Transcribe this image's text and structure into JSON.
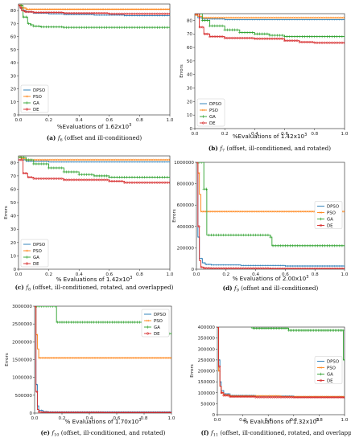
{
  "colors": {
    "DPSO": "#1f77b4",
    "PSO": "#ff7f0e",
    "GA": "#2ca02c",
    "DE": "#d62728"
  },
  "legend": [
    "DPSO",
    "PSO",
    "GA",
    "DE"
  ],
  "chart_data": [
    {
      "type": "line",
      "panel": "a",
      "xlabel": "%Evaluations of 1.62x10",
      "xlabel_sup": "3",
      "ylabel": "",
      "xlim": [
        0,
        1.0
      ],
      "ylim": [
        0,
        85
      ],
      "xticks": [
        0.0,
        0.2,
        0.4,
        0.6,
        0.8,
        1.0
      ],
      "xtick_labels": [
        "0.0",
        "0.2",
        "0.4",
        "0.6",
        "0.8",
        "1.0"
      ],
      "yticks": [
        0,
        10,
        20,
        30,
        40,
        50,
        60,
        70,
        80
      ],
      "ytick_labels": [
        "0",
        "10",
        "20",
        "30",
        "40",
        "50",
        "60",
        "70",
        "80"
      ],
      "legend_loc": "bottom-left",
      "series": [
        {
          "name": "DPSO",
          "x": [
            0,
            0.01,
            0.02,
            0.05,
            0.1,
            0.2,
            0.3,
            0.5,
            0.7,
            1.0
          ],
          "y": [
            84,
            82,
            80,
            79,
            78,
            77.5,
            77,
            76.5,
            76,
            76
          ]
        },
        {
          "name": "PSO",
          "x": [
            0,
            0.02,
            0.05,
            1.0
          ],
          "y": [
            84,
            82,
            81,
            81
          ]
        },
        {
          "name": "GA",
          "x": [
            0,
            0.03,
            0.06,
            0.08,
            0.1,
            0.15,
            0.3,
            1.0
          ],
          "y": [
            84,
            75,
            70,
            69,
            68,
            67.5,
            67,
            67
          ]
        },
        {
          "name": "DE",
          "x": [
            0,
            0.01,
            0.02,
            0.04,
            0.1,
            0.3,
            0.6,
            1.0
          ],
          "y": [
            84,
            82,
            80,
            79,
            78.5,
            78,
            77.5,
            77.5
          ]
        }
      ],
      "caption_letter": "(a)",
      "caption_fn": "f",
      "caption_sub": "6",
      "caption_text": " (offset and ill-conditioned)"
    },
    {
      "type": "line",
      "panel": "b",
      "xlabel": "%Evaluations of 1.42x10",
      "xlabel_sup": "3",
      "ylabel": "Errors",
      "xlim": [
        0,
        1.0
      ],
      "ylim": [
        0,
        85
      ],
      "xticks": [
        0.0,
        0.2,
        0.4,
        0.6,
        0.8,
        1.0
      ],
      "xtick_labels": [
        "0.0",
        "0.2",
        "0.4",
        "0.6",
        "0.8",
        "1.0"
      ],
      "yticks": [
        0,
        10,
        20,
        30,
        40,
        50,
        60,
        70,
        80
      ],
      "ytick_labels": [
        "0",
        "10",
        "20",
        "30",
        "40",
        "50",
        "60",
        "70",
        "80"
      ],
      "legend_loc": "bottom-left",
      "series": [
        {
          "name": "DPSO",
          "x": [
            0,
            0.02,
            0.05,
            0.2,
            0.5,
            1.0
          ],
          "y": [
            84,
            82,
            81,
            80.5,
            80.5,
            80.5
          ]
        },
        {
          "name": "PSO",
          "x": [
            0,
            0.02,
            0.05,
            1.0
          ],
          "y": [
            84,
            83,
            82,
            82
          ]
        },
        {
          "name": "GA",
          "x": [
            0,
            0.05,
            0.1,
            0.2,
            0.3,
            0.4,
            0.5,
            0.6,
            0.7,
            1.0
          ],
          "y": [
            85,
            80,
            76,
            73,
            71,
            70,
            69,
            68,
            68,
            68
          ]
        },
        {
          "name": "DE",
          "x": [
            0,
            0.03,
            0.06,
            0.1,
            0.2,
            0.4,
            0.6,
            0.7,
            0.8,
            1.0
          ],
          "y": [
            85,
            75,
            70,
            68,
            67,
            66.5,
            65,
            64,
            63.5,
            63.5
          ]
        }
      ],
      "caption_letter": "(b)",
      "caption_fn": "f",
      "caption_sub": "7",
      "caption_text": " (offset, ill-conditioned, and rotated)"
    },
    {
      "type": "line",
      "panel": "c",
      "xlabel": "% Evaluations of 1.42x10",
      "xlabel_sup": "3",
      "ylabel": "Errors",
      "xlim": [
        0,
        1.0
      ],
      "ylim": [
        0,
        85
      ],
      "xticks": [
        0.0,
        0.2,
        0.4,
        0.6,
        0.8,
        1.0
      ],
      "xtick_labels": [
        "0.0",
        "0.2",
        "0.4",
        "0.6",
        "0.8",
        "1.0"
      ],
      "yticks": [
        0,
        10,
        20,
        30,
        40,
        50,
        60,
        70,
        80
      ],
      "ytick_labels": [
        "0",
        "10",
        "20",
        "30",
        "40",
        "50",
        "60",
        "70",
        "80"
      ],
      "legend_loc": "bottom-left",
      "series": [
        {
          "name": "DPSO",
          "x": [
            0,
            0.02,
            0.05,
            0.2,
            0.5,
            1.0
          ],
          "y": [
            84,
            82,
            81,
            80.5,
            80.5,
            80.5
          ]
        },
        {
          "name": "PSO",
          "x": [
            0,
            0.02,
            0.05,
            1.0
          ],
          "y": [
            84,
            83,
            82,
            82
          ]
        },
        {
          "name": "GA",
          "x": [
            0,
            0.05,
            0.1,
            0.2,
            0.3,
            0.4,
            0.5,
            0.6,
            0.8,
            1.0
          ],
          "y": [
            84,
            82,
            79,
            76,
            73,
            71,
            70,
            69,
            69,
            69
          ]
        },
        {
          "name": "DE",
          "x": [
            0,
            0.03,
            0.06,
            0.1,
            0.3,
            0.5,
            0.6,
            0.7,
            1.0
          ],
          "y": [
            82,
            72,
            69,
            68,
            67,
            67,
            66,
            65,
            65
          ]
        }
      ],
      "caption_letter": "(c)",
      "caption_fn": "f",
      "caption_sub": "8",
      "caption_text": " (offset, ill-conditioned, rotated, and overlapped)"
    },
    {
      "type": "line",
      "panel": "d",
      "xlabel": "% Evaluations of 2.00x10",
      "xlabel_sup": "3",
      "ylabel": "Errors",
      "xlim": [
        0,
        1.0
      ],
      "ylim": [
        0,
        1000000
      ],
      "xticks": [
        0.0,
        0.2,
        0.4,
        0.6,
        0.8,
        1.0
      ],
      "xtick_labels": [
        "0.0",
        "0.2",
        "0.4",
        "0.6",
        "0.8",
        "1.0"
      ],
      "yticks": [
        0,
        200000,
        400000,
        600000,
        800000,
        1000000
      ],
      "ytick_labels": [
        "0",
        "200000",
        "400000",
        "600000",
        "800000",
        "1000000"
      ],
      "legend_loc": "right",
      "series": [
        {
          "name": "DPSO",
          "x": [
            0,
            0.01,
            0.02,
            0.04,
            0.06,
            0.1,
            0.3,
            0.6,
            1.0
          ],
          "y": [
            1000000,
            300000,
            100000,
            60000,
            45000,
            40000,
            35000,
            30000,
            20000
          ]
        },
        {
          "name": "PSO",
          "x": [
            0,
            0.01,
            0.02,
            0.03,
            1.0
          ],
          "y": [
            1000000,
            900000,
            700000,
            540000,
            540000
          ]
        },
        {
          "name": "GA",
          "x": [
            0,
            0.04,
            0.05,
            0.06,
            0.07,
            0.08,
            0.5,
            0.51,
            1.0
          ],
          "y": [
            1000000,
            1000000,
            750000,
            750000,
            320000,
            320000,
            300000,
            220000,
            220000
          ]
        },
        {
          "name": "DE",
          "x": [
            0,
            0.01,
            0.02,
            0.03,
            0.05,
            0.1,
            0.5,
            1.0
          ],
          "y": [
            1000000,
            400000,
            80000,
            20000,
            10000,
            8000,
            6000,
            5000
          ]
        }
      ],
      "caption_letter": "(d)",
      "caption_fn": "f",
      "caption_sub": "9",
      "caption_text": " (offset and ill-conditioned)"
    },
    {
      "type": "line",
      "panel": "e",
      "xlabel": "% Evaluations of 1.70x10",
      "xlabel_sup": "3",
      "ylabel": "Errors",
      "xlim": [
        0,
        1.0
      ],
      "ylim": [
        0,
        3000000
      ],
      "xticks": [
        0.0,
        0.2,
        0.4,
        0.6,
        0.8,
        1.0
      ],
      "xtick_labels": [
        "0.0",
        "0.2",
        "0.4",
        "0.6",
        "0.8",
        "1.0"
      ],
      "yticks": [
        0,
        500000,
        1000000,
        1500000,
        2000000,
        2500000,
        3000000
      ],
      "ytick_labels": [
        "0",
        "500000",
        "1000000",
        "1500000",
        "2000000",
        "2500000",
        "3000000"
      ],
      "legend_loc": "top-right",
      "series": [
        {
          "name": "DPSO",
          "x": [
            0,
            0.01,
            0.02,
            0.03,
            0.06,
            0.1,
            0.5,
            1.0
          ],
          "y": [
            3000000,
            800000,
            200000,
            80000,
            40000,
            30000,
            28000,
            25000
          ]
        },
        {
          "name": "PSO",
          "x": [
            0,
            0.01,
            0.02,
            0.03,
            1.0
          ],
          "y": [
            3000000,
            2200000,
            1800000,
            1550000,
            1550000
          ]
        },
        {
          "name": "GA",
          "x": [
            0,
            0.15,
            0.16,
            0.8,
            0.81,
            1.0
          ],
          "y": [
            3000000,
            3000000,
            2550000,
            2550000,
            2230000,
            2230000
          ]
        },
        {
          "name": "DE",
          "x": [
            0,
            0.01,
            0.02,
            0.03,
            0.05,
            0.1,
            0.5,
            1.0
          ],
          "y": [
            3000000,
            600000,
            100000,
            30000,
            20000,
            15000,
            12000,
            10000
          ]
        }
      ],
      "caption_letter": "(e)",
      "caption_fn": "f",
      "caption_sub": "10",
      "caption_text": " (offset, ill-conditioned, and rotated)"
    },
    {
      "type": "line",
      "panel": "f",
      "xlabel": "% Evaluations of 1.32x10",
      "xlabel_sup": "3",
      "ylabel": "Errors",
      "xlim": [
        0,
        1.0
      ],
      "ylim": [
        0,
        400000
      ],
      "xticks": [
        0.0,
        0.2,
        0.4,
        0.6,
        0.8,
        1.0
      ],
      "xtick_labels": [
        "0.0",
        "0.2",
        "0.4",
        "0.6",
        "0.8",
        "1.0"
      ],
      "yticks": [
        0,
        50000,
        100000,
        150000,
        200000,
        250000,
        300000,
        350000,
        400000
      ],
      "ytick_labels": [
        "0",
        "50000",
        "100000",
        "150000",
        "200000",
        "250000",
        "300000",
        "350000",
        "400000"
      ],
      "legend_loc": "right",
      "series": [
        {
          "name": "DPSO",
          "x": [
            0,
            0.01,
            0.02,
            0.03,
            0.05,
            0.1,
            0.3,
            0.6,
            1.0
          ],
          "y": [
            400000,
            250000,
            150000,
            110000,
            95000,
            88000,
            85000,
            82000,
            80000
          ]
        },
        {
          "name": "PSO",
          "x": [
            0,
            0.01,
            0.02,
            0.03,
            0.05,
            0.1,
            0.5,
            1.0
          ],
          "y": [
            400000,
            200000,
            130000,
            100000,
            90000,
            85000,
            82000,
            80000
          ]
        },
        {
          "name": "GA",
          "x": [
            0.27,
            0.28,
            0.55,
            0.56,
            0.98,
            0.99,
            1.0
          ],
          "y": [
            400000,
            395000,
            395000,
            385000,
            385000,
            250000,
            250000
          ]
        },
        {
          "name": "DE",
          "x": [
            0,
            0.01,
            0.02,
            0.03,
            0.05,
            0.1,
            0.3,
            0.6,
            1.0
          ],
          "y": [
            400000,
            220000,
            130000,
            100000,
            88000,
            82000,
            80000,
            79000,
            78000
          ]
        }
      ],
      "caption_letter": "(f)",
      "caption_fn": "f",
      "caption_sub": "11",
      "caption_text": " (offset, ill-conditioned, rotated, and overlapped)"
    }
  ]
}
